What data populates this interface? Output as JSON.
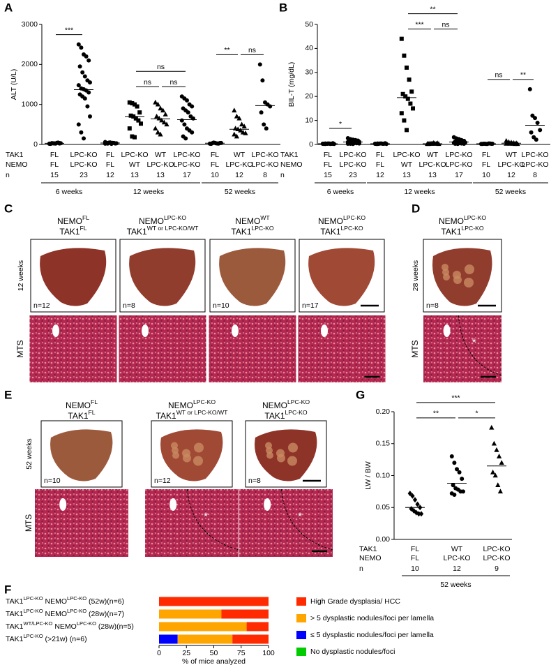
{
  "chart_data": [
    {
      "type": "strip",
      "panel": "A",
      "y_label": "ALT (U/L)",
      "ylim": [
        0,
        3000
      ],
      "yticks": [
        0,
        1000,
        2000,
        3000
      ],
      "row_labels": [
        "TAK1",
        "NEMO",
        "n"
      ],
      "color": "#000000",
      "periods": [
        {
          "label": "6 weeks",
          "groups": [
            {
              "tak1": "FL",
              "nemo": "FL",
              "n": 15,
              "marker": "circle",
              "mean": 29,
              "values": [
                20,
                30,
                25,
                40,
                35,
                15,
                28,
                22,
                45,
                30,
                18,
                33,
                26,
                38,
                24
              ]
            },
            {
              "tak1": "LPC-KO",
              "nemo": "LPC-KO",
              "n": 23,
              "marker": "circle",
              "mean": 1370,
              "values": [
                2500,
                2420,
                2250,
                2200,
                2100,
                1950,
                1800,
                1700,
                1600,
                1550,
                1480,
                1400,
                1380,
                1350,
                1300,
                1250,
                1200,
                1150,
                950,
                700,
                500,
                300,
                150
              ]
            }
          ]
        },
        {
          "label": "12 weeks",
          "groups": [
            {
              "tak1": "FL",
              "nemo": "FL",
              "n": 12,
              "marker": "circle",
              "mean": 34,
              "values": [
                20,
                35,
                50,
                40,
                25,
                30,
                45,
                15,
                38,
                28,
                60,
                22
              ]
            },
            {
              "tak1": "LPC-KO",
              "nemo": "WT",
              "n": 13,
              "marker": "square",
              "mean": 700,
              "values": [
                1050,
                1030,
                1000,
                950,
                800,
                720,
                700,
                650,
                600,
                520,
                400,
                200,
                180
              ]
            },
            {
              "tak1": "WT",
              "nemo": "LPC-KO",
              "n": 13,
              "marker": "triangle",
              "mean": 640,
              "values": [
                1050,
                1000,
                900,
                850,
                750,
                700,
                650,
                600,
                550,
                500,
                400,
                300,
                250
              ]
            },
            {
              "tak1": "LPC-KO",
              "nemo": "LPC-KO",
              "n": 17,
              "marker": "circle",
              "mean": 620,
              "values": [
                1200,
                1150,
                1100,
                1000,
                950,
                900,
                850,
                800,
                700,
                650,
                600,
                500,
                400,
                350,
                300,
                200,
                150
              ]
            }
          ]
        },
        {
          "label": "52 weeks",
          "groups": [
            {
              "tak1": "FL",
              "nemo": "FL",
              "n": 10,
              "marker": "circle",
              "mean": 30,
              "values": [
                20,
                30,
                40,
                25,
                35,
                15,
                45,
                28,
                22,
                38
              ]
            },
            {
              "tak1": "WT",
              "nemo": "LPC-KO",
              "n": 12,
              "marker": "triangle",
              "mean": 380,
              "values": [
                850,
                700,
                650,
                500,
                450,
                400,
                380,
                350,
                300,
                280,
                250,
                200
              ]
            },
            {
              "tak1": "LPC-KO",
              "nemo": "LPC-KO",
              "n": 8,
              "marker": "circle",
              "mean": 970,
              "values": [
                2000,
                1600,
                1050,
                1000,
                950,
                800,
                500,
                400
              ]
            }
          ]
        }
      ],
      "significance": [
        {
          "label": "***",
          "from": 0,
          "to": 1
        },
        {
          "label": "ns",
          "from": 3,
          "to": 5
        },
        {
          "label": "ns",
          "from": 3,
          "to": 4
        },
        {
          "label": "ns",
          "from": 4,
          "to": 5
        },
        {
          "label": "**",
          "from": 6,
          "to": 7
        },
        {
          "label": "ns",
          "from": 7,
          "to": 8
        }
      ]
    },
    {
      "type": "strip",
      "panel": "B",
      "y_label": "BIL-T (mg/dL)",
      "ylim": [
        0,
        50
      ],
      "yticks": [
        0,
        10,
        20,
        30,
        40,
        50
      ],
      "row_labels": [
        "TAK1",
        "NEMO",
        "n"
      ],
      "color": "#000000",
      "periods": [
        {
          "label": "6 weeks",
          "groups": [
            {
              "tak1": "FL",
              "nemo": "FL",
              "n": 15,
              "marker": "circle",
              "mean": 0.3,
              "values": [
                0.3,
                0.2,
                0.4,
                0.3,
                0.5,
                0.2,
                0.3,
                0.4,
                0.3,
                0.2,
                0.3,
                0.4,
                0.3,
                0.2,
                0.3
              ]
            },
            {
              "tak1": "LPC-KO",
              "nemo": "LPC-KO",
              "n": 23,
              "marker": "circle",
              "mean": 1.0,
              "values": [
                2.6,
                2.2,
                2.0,
                1.8,
                1.6,
                1.5,
                1.4,
                1.3,
                1.2,
                1.1,
                1.0,
                1.0,
                0.9,
                0.8,
                0.8,
                0.7,
                0.6,
                0.5,
                0.5,
                0.4,
                0.3,
                0.3,
                0.2
              ]
            }
          ]
        },
        {
          "label": "12 weeks",
          "groups": [
            {
              "tak1": "FL",
              "nemo": "FL",
              "n": 12,
              "marker": "circle",
              "mean": 0.3,
              "values": [
                0.3,
                0.2,
                0.4,
                0.3,
                0.5,
                0.2,
                0.3,
                0.4,
                0.3,
                0.2,
                0.3,
                0.4
              ]
            },
            {
              "tak1": "LPC-KO",
              "nemo": "WT",
              "n": 13,
              "marker": "square",
              "mean": 19.5,
              "values": [
                44,
                37,
                32,
                27,
                22,
                21,
                20,
                19,
                17,
                15,
                13,
                10,
                6
              ]
            },
            {
              "tak1": "WT",
              "nemo": "LPC-KO",
              "n": 13,
              "marker": "triangle",
              "mean": 0.3,
              "values": [
                0.2,
                0.3,
                0.4,
                0.3,
                0.5,
                0.2,
                0.3,
                0.6,
                0.3,
                0.2,
                0.3,
                0.4,
                0.3
              ]
            },
            {
              "tak1": "LPC-KO",
              "nemo": "LPC-KO",
              "n": 17,
              "marker": "circle",
              "mean": 1.0,
              "values": [
                3.0,
                2.5,
                2.2,
                1.8,
                1.5,
                1.2,
                1.0,
                1.0,
                0.9,
                0.8,
                0.7,
                0.6,
                0.5,
                0.4,
                0.3,
                0.3,
                0.2
              ]
            }
          ]
        },
        {
          "label": "52 weeks",
          "groups": [
            {
              "tak1": "FL",
              "nemo": "FL",
              "n": 10,
              "marker": "circle",
              "mean": 0.3,
              "values": [
                0.2,
                0.3,
                0.2,
                0.4,
                0.3,
                0.2,
                0.3,
                0.2,
                0.4,
                0.3
              ]
            },
            {
              "tak1": "WT",
              "nemo": "LPC-KO",
              "n": 12,
              "marker": "triangle",
              "mean": 0.5,
              "values": [
                1.5,
                1.0,
                0.8,
                0.6,
                0.5,
                0.4,
                0.3,
                0.3,
                0.2,
                0.2,
                0.3,
                0.4
              ]
            },
            {
              "tak1": "LPC-KO",
              "nemo": "LPC-KO",
              "n": 8,
              "marker": "circle",
              "mean": 8,
              "values": [
                23,
                12,
                11,
                9,
                6,
                5,
                3,
                2
              ]
            }
          ]
        }
      ],
      "significance": [
        {
          "label": "*",
          "from": 0,
          "to": 1
        },
        {
          "label": "**",
          "from": 3,
          "to": 5
        },
        {
          "label": "***",
          "from": 3,
          "to": 4
        },
        {
          "label": "ns",
          "from": 4,
          "to": 5
        },
        {
          "label": "ns",
          "from": 6,
          "to": 7
        },
        {
          "label": "**",
          "from": 7,
          "to": 8
        }
      ]
    },
    {
      "type": "strip",
      "panel": "G",
      "y_label": "LW / BW",
      "ylim": [
        0,
        0.2
      ],
      "yticks": [
        {
          "value": 0,
          "label": "0.00"
        },
        {
          "value": 0.05,
          "label": "0.05"
        },
        {
          "value": 0.1,
          "label": "0.10"
        },
        {
          "value": 0.15,
          "label": "0.15"
        },
        {
          "value": 0.2,
          "label": "0.20"
        }
      ],
      "row_labels": [
        "TAK1",
        "NEMO",
        "n"
      ],
      "color": "#000000",
      "periods": [
        {
          "label": "52 weeks",
          "groups": [
            {
              "tak1": "FL",
              "nemo": "FL",
              "n": 10,
              "marker": "diamond",
              "mean": 0.05,
              "values": [
                0.072,
                0.068,
                0.062,
                0.055,
                0.05,
                0.048,
                0.045,
                0.042,
                0.04,
                0.04
              ]
            },
            {
              "tak1": "WT",
              "nemo": "LPC-KO",
              "n": 12,
              "marker": "circle",
              "mean": 0.088,
              "values": [
                0.13,
                0.12,
                0.11,
                0.105,
                0.095,
                0.085,
                0.08,
                0.078,
                0.075,
                0.075,
                0.072,
                0.07
              ]
            },
            {
              "tak1": "LPC-KO",
              "nemo": "LPC-KO",
              "n": 9,
              "marker": "triangle",
              "mean": 0.115,
              "values": [
                0.175,
                0.15,
                0.14,
                0.13,
                0.12,
                0.105,
                0.1,
                0.085,
                0.075
              ]
            }
          ]
        }
      ],
      "significance": [
        {
          "label": "***",
          "from": 0,
          "to": 2
        },
        {
          "label": "**",
          "from": 0,
          "to": 1
        },
        {
          "label": "*",
          "from": 1,
          "to": 2
        }
      ]
    },
    {
      "type": "stacked_barh",
      "panel": "F",
      "x_label": "% of mice analyzed",
      "xlim": [
        0,
        100
      ],
      "xticks": [
        0,
        25,
        50,
        75,
        100
      ],
      "categories": [
        [
          "TAK1",
          "LPC-KO",
          " NEMO",
          "LPC-KO",
          " (52w)(n=6)"
        ],
        [
          "TAK1",
          "LPC-KO",
          " NEMO",
          "LPC-KO",
          " (28w)(n=7)"
        ],
        [
          "TAK1",
          "WT/LPC-KO",
          " NEMO",
          "LPC-KO",
          " (28w)(n=5)"
        ],
        [
          "TAK1",
          "LPC-KO",
          " (>21w) (n=6)"
        ]
      ],
      "series": [
        {
          "name": "High Grade dysplasia/ HCC",
          "color": "#ff2a00",
          "values": [
            100,
            43,
            20,
            33
          ]
        },
        {
          "name": "> 5 dysplastic nodules/foci per lamella",
          "color": "#ffa500",
          "values": [
            0,
            57,
            80,
            50
          ]
        },
        {
          "name": "≤ 5 dysplastic nodules/foci per lamella",
          "color": "#0000ff",
          "values": [
            0,
            0,
            0,
            17
          ]
        },
        {
          "name": "No dysplastic nodules/foci",
          "color": "#00cc00",
          "values": [
            0,
            0,
            0,
            0
          ]
        }
      ]
    }
  ],
  "images": [
    {
      "panel": "C",
      "period": "12 weeks",
      "stain": "MTS",
      "columns": [
        {
          "lines": [
            [
              "NEMO",
              "FL"
            ],
            [
              "TAK1",
              "FL"
            ]
          ],
          "n": "n=12"
        },
        {
          "lines": [
            [
              "NEMO",
              "LPC-KO"
            ],
            [
              "TAK1",
              "WT or LPC-KO/WT"
            ]
          ],
          "n": "n=8"
        },
        {
          "lines": [
            [
              "NEMO",
              "WT"
            ],
            [
              "TAK1",
              "LPC-KO"
            ]
          ],
          "n": "n=10"
        },
        {
          "lines": [
            [
              "NEMO",
              "LPC-KO"
            ],
            [
              "TAK1",
              "LPC-KO"
            ]
          ],
          "n": "n=17"
        }
      ]
    },
    {
      "panel": "D",
      "period": "28 weeks",
      "stain": "MTS",
      "columns": [
        {
          "lines": [
            [
              "NEMO",
              "LPC-KO"
            ],
            [
              "TAK1",
              "LPC-KO"
            ]
          ],
          "n": "n=8",
          "annotation": "*"
        }
      ]
    },
    {
      "panel": "E",
      "period": "52 weeks",
      "stain": "MTS",
      "columns": [
        {
          "lines": [
            [
              "NEMO",
              "FL"
            ],
            [
              "TAK1",
              "FL"
            ]
          ],
          "n": "n=10"
        },
        {
          "lines": [
            [
              "NEMO",
              "LPC-KO"
            ],
            [
              "TAK1",
              "WT or LPC-KO/WT"
            ]
          ],
          "n": "n=12",
          "annotation": "*"
        },
        {
          "lines": [
            [
              "NEMO",
              "LPC-KO"
            ],
            [
              "TAK1",
              "LPC-KO"
            ]
          ],
          "n": "n=8",
          "annotation": "*"
        }
      ]
    }
  ]
}
